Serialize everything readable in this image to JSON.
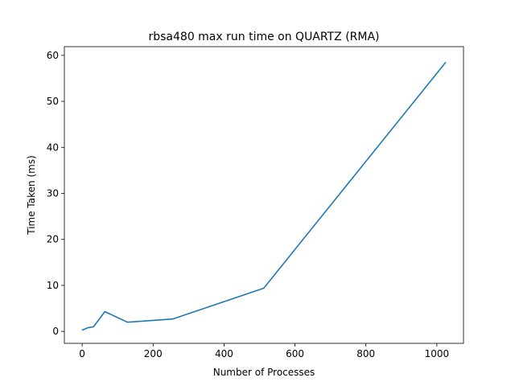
{
  "chart_data": {
    "type": "line",
    "title": "rbsa480 max run time on QUARTZ (RMA)",
    "xlabel": "Number of Processes",
    "ylabel": "Time Taken (ms)",
    "xlim": [
      -50.15,
      1075.15
    ],
    "ylim": [
      -2.6,
      61.9
    ],
    "xticks": [
      0,
      200,
      400,
      600,
      800,
      1000
    ],
    "yticks": [
      0,
      10,
      20,
      30,
      40,
      50,
      60
    ],
    "grid": false,
    "series": [
      {
        "color": "#1f77b4",
        "x": [
          1,
          16,
          32,
          64,
          128,
          256,
          512,
          1024
        ],
        "y": [
          0.3,
          0.8,
          1.0,
          4.3,
          2.0,
          2.7,
          9.4,
          58.4
        ]
      }
    ]
  }
}
